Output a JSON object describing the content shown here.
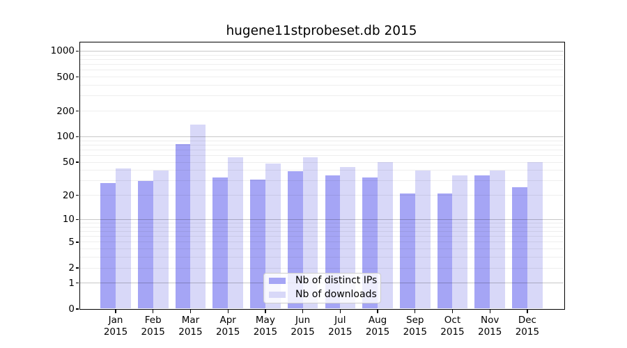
{
  "chart_data": {
    "type": "bar",
    "title": "hugene11stprobeset.db 2015",
    "categories": [
      "Jan 2015",
      "Feb 2015",
      "Mar 2015",
      "Apr 2015",
      "May 2015",
      "Jun 2015",
      "Jul 2015",
      "Aug 2015",
      "Sep 2015",
      "Oct 2015",
      "Nov 2015",
      "Dec 2015"
    ],
    "series": [
      {
        "name": "Nb of distinct IPs",
        "color": "#a5a5f5",
        "values": [
          28,
          30,
          82,
          33,
          31,
          39,
          35,
          33,
          21,
          21,
          35,
          25
        ]
      },
      {
        "name": "Nb of downloads",
        "color": "#d8d8f8",
        "values": [
          42,
          40,
          140,
          57,
          48,
          57,
          44,
          50,
          40,
          35,
          40,
          50
        ]
      }
    ],
    "yscale": "log10(1+y)",
    "yticks": [
      0,
      1,
      2,
      5,
      10,
      20,
      50,
      100,
      200,
      500,
      1000
    ],
    "ylim": [
      0,
      1300
    ],
    "xlabel": "",
    "ylabel": "",
    "grid": true,
    "legend_position": "lower-center",
    "grid_minor_color": "#ededed",
    "grid_major_color": "#c4c4c4",
    "axis_color": "#000000",
    "background_color": "#ffffff"
  }
}
